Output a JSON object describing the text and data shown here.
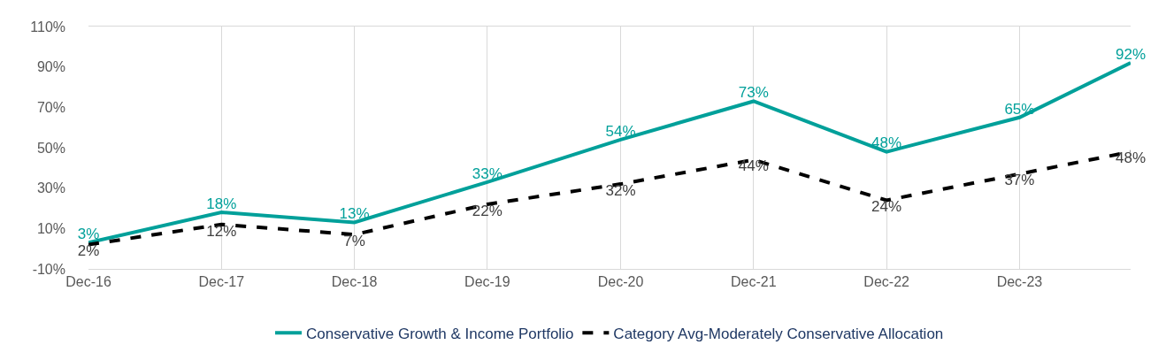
{
  "chart_data": {
    "type": "line",
    "x": [
      "2016-12",
      "2017-12",
      "2018-12",
      "2019-12",
      "2020-12",
      "2021-12",
      "2022-12",
      "2023-12",
      "2024-10"
    ],
    "series": [
      {
        "name": "Conservative Growth & Income Portfolio",
        "color": "#00a09a",
        "values": [
          3,
          18,
          13,
          33,
          54,
          73,
          48,
          65,
          92
        ],
        "value_labels": [
          "3%",
          "18%",
          "13%",
          "33%",
          "54%",
          "73%",
          "48%",
          "65%",
          "92%"
        ],
        "line_style": "solid"
      },
      {
        "name": "Category Avg-Moderately Conservative Allocation",
        "color": "#000000",
        "values": [
          2,
          12,
          7,
          22,
          32,
          44,
          24,
          37,
          48
        ],
        "value_labels": [
          "2%",
          "12%",
          "7%",
          "22%",
          "32%",
          "44%",
          "24%",
          "37%",
          "48%"
        ],
        "line_style": "dashed"
      }
    ],
    "xlim": [
      "2016-12",
      "2024-10"
    ],
    "xticks": [
      {
        "value": "2016-12",
        "label": "Dec-16"
      },
      {
        "value": "2017-12",
        "label": "Dec-17"
      },
      {
        "value": "2018-12",
        "label": "Dec-18"
      },
      {
        "value": "2019-12",
        "label": "Dec-19"
      },
      {
        "value": "2020-12",
        "label": "Dec-20"
      },
      {
        "value": "2021-12",
        "label": "Dec-21"
      },
      {
        "value": "2022-12",
        "label": "Dec-22"
      },
      {
        "value": "2023-12",
        "label": "Dec-23"
      }
    ],
    "ylim": [
      -10,
      110
    ],
    "yticks": [
      {
        "value": -10,
        "label": "-10%"
      },
      {
        "value": 10,
        "label": "10%"
      },
      {
        "value": 30,
        "label": "30%"
      },
      {
        "value": 50,
        "label": "50%"
      },
      {
        "value": 70,
        "label": "70%"
      },
      {
        "value": 90,
        "label": "90%"
      },
      {
        "value": 110,
        "label": "110%"
      }
    ],
    "grid": "x",
    "legend": "bottom",
    "marker": "none"
  }
}
